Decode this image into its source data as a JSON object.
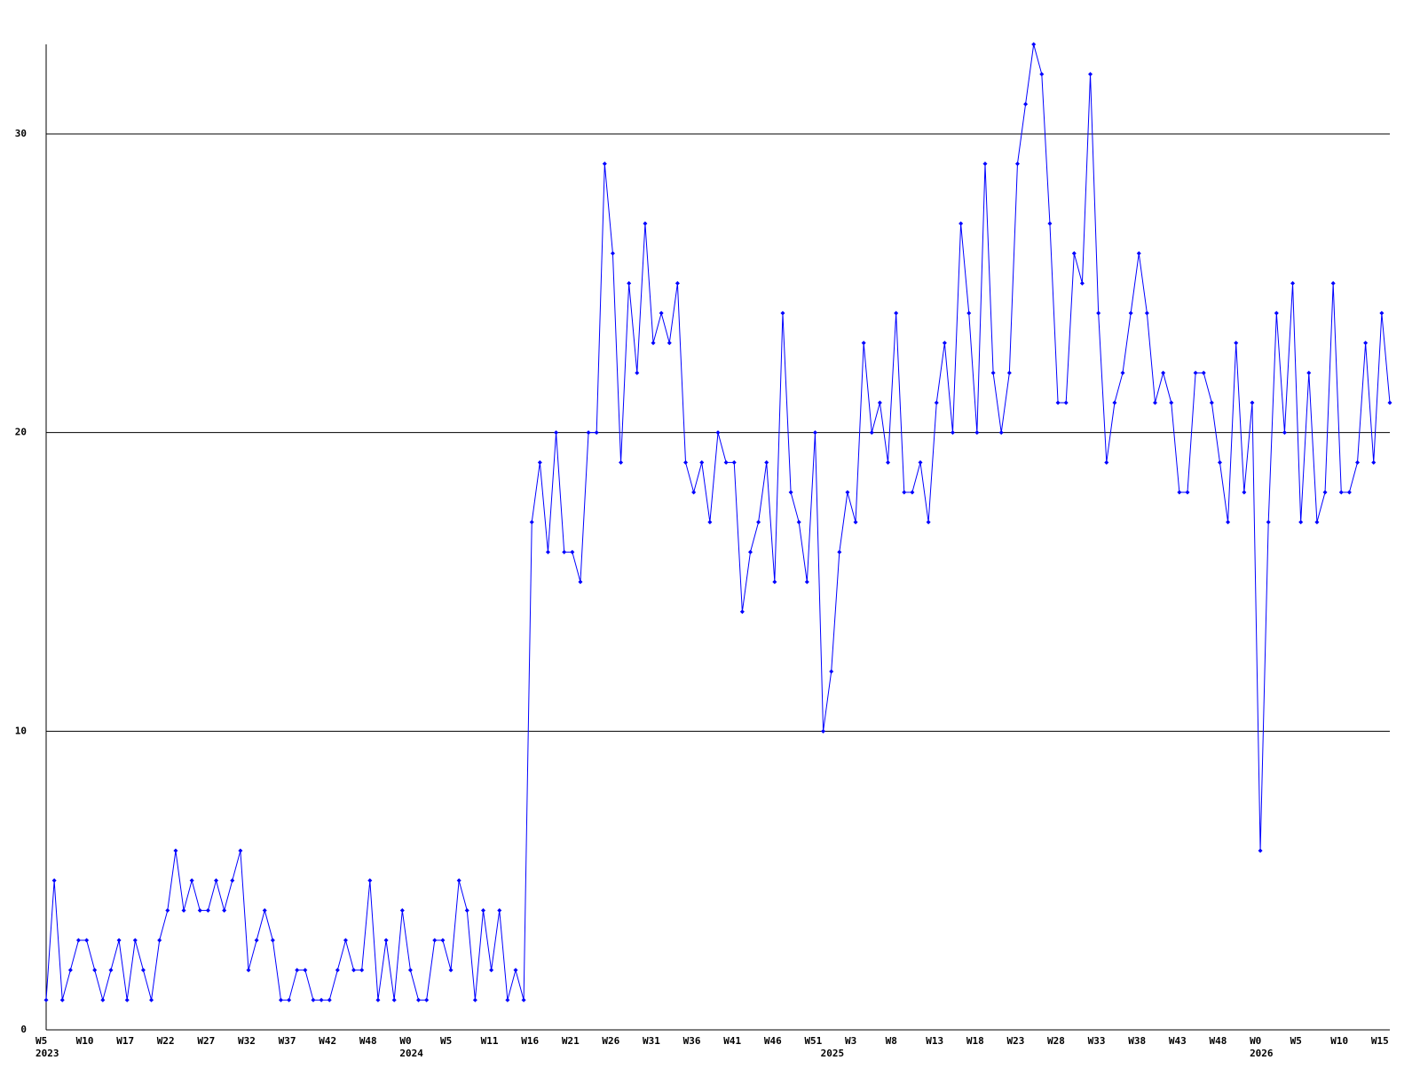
{
  "chart_data": {
    "type": "line",
    "color": "#0000ff",
    "grid": true,
    "ylim": [
      0,
      33
    ],
    "yticks": [
      0,
      10,
      20,
      30
    ],
    "categories": [
      "W5",
      null,
      null,
      null,
      null,
      "W10",
      null,
      null,
      null,
      null,
      "W17",
      null,
      null,
      null,
      null,
      "W22",
      null,
      null,
      null,
      null,
      "W27",
      null,
      null,
      null,
      null,
      "W32",
      null,
      null,
      null,
      null,
      "W37",
      null,
      null,
      null,
      null,
      "W42",
      null,
      null,
      null,
      null,
      "W48",
      null,
      null,
      null,
      null,
      "W0",
      null,
      null,
      null,
      null,
      "W5",
      null,
      null,
      null,
      null,
      "W11",
      null,
      null,
      null,
      null,
      "W16",
      null,
      null,
      null,
      null,
      "W21",
      null,
      null,
      null,
      null,
      "W26",
      null,
      null,
      null,
      null,
      "W31",
      null,
      null,
      null,
      null,
      "W36",
      null,
      null,
      null,
      null,
      "W41",
      null,
      null,
      null,
      null,
      "W46",
      null,
      null,
      null,
      null,
      "W51",
      null,
      null,
      null,
      null,
      "W3",
      null,
      null,
      null,
      null,
      "W8",
      null,
      null,
      null,
      null,
      "W13",
      null,
      null,
      null,
      null,
      "W18",
      null,
      null,
      null,
      null,
      "W23",
      null,
      null,
      null,
      null,
      "W28",
      null,
      null,
      null,
      null,
      "W33",
      null,
      null,
      null,
      null,
      "W38",
      null,
      null,
      null,
      null,
      "W43",
      null,
      null,
      null,
      null,
      "W48",
      null,
      null,
      null,
      null,
      "W0",
      null,
      null,
      null,
      null,
      "W5",
      null,
      null,
      null,
      null,
      "W10",
      null,
      null,
      null,
      null,
      "W15",
      null
    ],
    "year_labels": [
      "2023",
      null,
      null,
      null,
      null,
      null,
      null,
      null,
      null,
      null,
      null,
      null,
      null,
      null,
      null,
      null,
      null,
      null,
      null,
      null,
      null,
      null,
      null,
      null,
      null,
      null,
      null,
      null,
      null,
      null,
      null,
      null,
      null,
      null,
      null,
      null,
      null,
      null,
      null,
      null,
      null,
      null,
      null,
      null,
      null,
      "2024",
      null,
      null,
      null,
      null,
      null,
      null,
      null,
      null,
      null,
      null,
      null,
      null,
      null,
      null,
      null,
      null,
      null,
      null,
      null,
      null,
      null,
      null,
      null,
      null,
      null,
      null,
      null,
      null,
      null,
      null,
      null,
      null,
      null,
      null,
      null,
      null,
      null,
      null,
      null,
      null,
      null,
      null,
      null,
      null,
      null,
      null,
      null,
      null,
      null,
      null,
      null,
      "2025",
      null,
      null,
      null,
      null,
      null,
      null,
      null,
      null,
      null,
      null,
      null,
      null,
      null,
      null,
      null,
      null,
      null,
      null,
      null,
      null,
      null,
      null,
      null,
      null,
      null,
      null,
      null,
      null,
      null,
      null,
      null,
      null,
      null,
      null,
      null,
      null,
      null,
      null,
      null,
      null,
      null,
      null,
      null,
      null,
      null,
      null,
      null,
      null,
      null,
      null,
      null,
      null,
      "2026",
      null,
      null,
      null,
      null,
      null,
      null,
      null,
      null,
      null,
      null,
      null,
      null,
      null,
      null,
      null,
      null
    ],
    "values": [
      1,
      5,
      1,
      2,
      3,
      3,
      2,
      1,
      2,
      3,
      1,
      3,
      2,
      1,
      3,
      4,
      6,
      4,
      5,
      4,
      4,
      5,
      4,
      5,
      6,
      2,
      3,
      4,
      3,
      1,
      1,
      2,
      2,
      1,
      1,
      1,
      2,
      3,
      2,
      2,
      5,
      1,
      3,
      1,
      4,
      2,
      1,
      1,
      3,
      3,
      2,
      5,
      4,
      1,
      4,
      2,
      4,
      1,
      2,
      1,
      17,
      19,
      16,
      20,
      16,
      16,
      15,
      20,
      20,
      29,
      26,
      19,
      25,
      22,
      27,
      23,
      24,
      23,
      25,
      19,
      18,
      19,
      17,
      20,
      19,
      19,
      14,
      16,
      17,
      19,
      15,
      24,
      18,
      17,
      15,
      20,
      10,
      12,
      16,
      18,
      17,
      23,
      20,
      21,
      19,
      24,
      18,
      18,
      19,
      17,
      21,
      23,
      20,
      27,
      24,
      20,
      29,
      22,
      20,
      22,
      29,
      31,
      33,
      32,
      27,
      21,
      21,
      26,
      25,
      32,
      24,
      19,
      21,
      22,
      24,
      26,
      24,
      21,
      22,
      21,
      18,
      18,
      22,
      22,
      21,
      19,
      17,
      23,
      18,
      21,
      6,
      17,
      24,
      20,
      25,
      17,
      22,
      17,
      18,
      25,
      18,
      18,
      19,
      23,
      19,
      24,
      21
    ]
  }
}
